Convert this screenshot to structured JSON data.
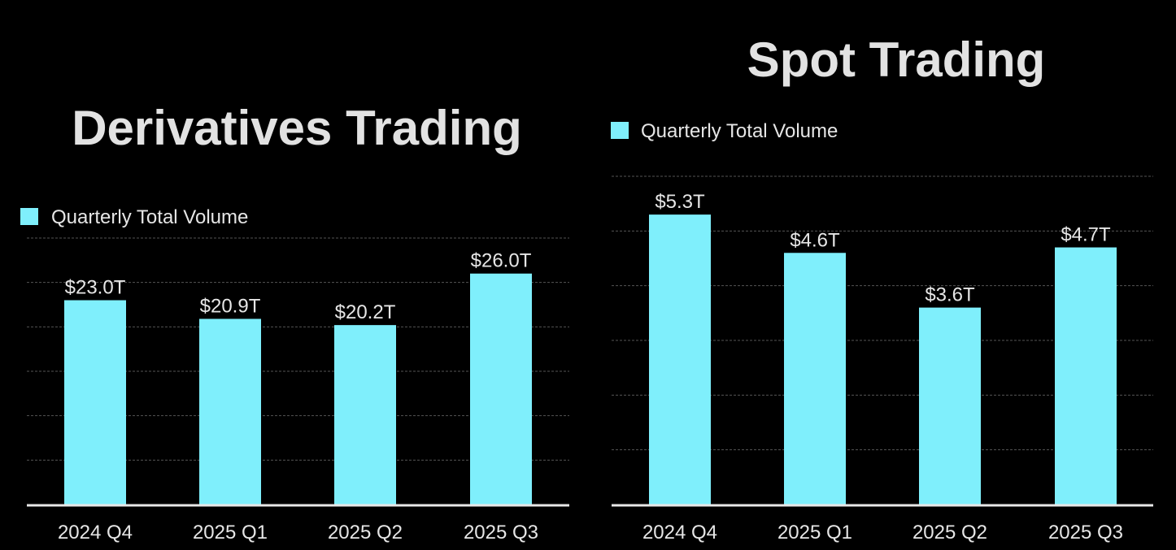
{
  "colors": {
    "background": "#000000",
    "bar": "#7FEFFC",
    "text": "#E2E2E2",
    "grid": "#555555",
    "axis": "#E8E8E8"
  },
  "chart_data": [
    {
      "type": "bar",
      "title": "Derivatives Trading",
      "legend": {
        "label": "Quarterly Total Volume",
        "placement": "top-left"
      },
      "categories": [
        "2024 Q4",
        "2025 Q1",
        "2025 Q2",
        "2025 Q3"
      ],
      "values": [
        23.0,
        20.9,
        20.2,
        26.0
      ],
      "data_labels": [
        "$23.0T",
        "$20.9T",
        "$20.2T",
        "$26.0T"
      ],
      "unit": "T",
      "ylim": [
        0,
        30
      ],
      "grid_step": 5,
      "grid": true
    },
    {
      "type": "bar",
      "title": "Spot Trading",
      "legend": {
        "label": "Quarterly Total Volume",
        "placement": "top-left"
      },
      "categories": [
        "2024 Q4",
        "2025 Q1",
        "2025 Q2",
        "2025 Q3"
      ],
      "values": [
        5.3,
        4.6,
        3.6,
        4.7
      ],
      "data_labels": [
        "$5.3T",
        "$4.6T",
        "$3.6T",
        "$4.7T"
      ],
      "unit": "T",
      "ylim": [
        0,
        6
      ],
      "grid_step": 1,
      "grid": true
    }
  ]
}
